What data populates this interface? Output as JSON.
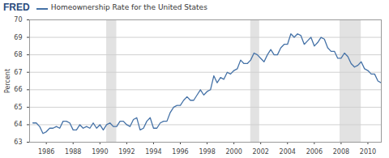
{
  "chart_data": {
    "type": "line",
    "logo": "FRED",
    "ylabel": "Percent",
    "legend": "top",
    "grid": true,
    "x": [
      1985,
      1985.25,
      1985.5,
      1985.75,
      1986,
      1986.25,
      1986.5,
      1986.75,
      1987,
      1987.25,
      1987.5,
      1987.75,
      1988,
      1988.25,
      1988.5,
      1988.75,
      1989,
      1989.25,
      1989.5,
      1989.75,
      1990,
      1990.25,
      1990.5,
      1990.75,
      1991,
      1991.25,
      1991.5,
      1991.75,
      1992,
      1992.25,
      1992.5,
      1992.75,
      1993,
      1993.25,
      1993.5,
      1993.75,
      1994,
      1994.25,
      1994.5,
      1994.75,
      1995,
      1995.25,
      1995.5,
      1995.75,
      1996,
      1996.25,
      1996.5,
      1996.75,
      1997,
      1997.25,
      1997.5,
      1997.75,
      1998,
      1998.25,
      1998.5,
      1998.75,
      1999,
      1999.25,
      1999.5,
      1999.75,
      2000,
      2000.25,
      2000.5,
      2000.75,
      2001,
      2001.25,
      2001.5,
      2001.75,
      2002,
      2002.25,
      2002.5,
      2002.75,
      2003,
      2003.25,
      2003.5,
      2003.75,
      2004,
      2004.25,
      2004.5,
      2004.75,
      2005,
      2005.25,
      2005.5,
      2005.75,
      2006,
      2006.25,
      2006.5,
      2006.75,
      2007,
      2007.25,
      2007.5,
      2007.75,
      2008,
      2008.25,
      2008.5,
      2008.75,
      2009,
      2009.25,
      2009.5,
      2009.75,
      2010,
      2010.25,
      2010.5,
      2010.75,
      2011
    ],
    "series": [
      {
        "name": "Homeownership Rate for the United States",
        "color": "#4572a7",
        "values": [
          64.1,
          64.1,
          63.9,
          63.5,
          63.6,
          63.8,
          63.8,
          63.9,
          63.8,
          64.2,
          64.2,
          64.1,
          63.7,
          63.7,
          64.0,
          63.8,
          63.9,
          63.8,
          64.1,
          63.8,
          64.0,
          63.7,
          64.0,
          64.1,
          63.9,
          63.9,
          64.2,
          64.2,
          64.0,
          63.9,
          64.3,
          64.4,
          63.7,
          63.8,
          64.2,
          64.4,
          63.8,
          63.8,
          64.1,
          64.2,
          64.2,
          64.7,
          65.0,
          65.1,
          65.1,
          65.4,
          65.6,
          65.4,
          65.4,
          65.7,
          66.0,
          65.7,
          65.9,
          66.0,
          66.8,
          66.4,
          66.7,
          66.6,
          67.0,
          66.9,
          67.1,
          67.2,
          67.7,
          67.5,
          67.5,
          67.7,
          68.1,
          68.0,
          67.8,
          67.6,
          68.0,
          68.3,
          68.0,
          68.0,
          68.4,
          68.6,
          68.6,
          69.2,
          69.0,
          69.2,
          69.1,
          68.6,
          68.8,
          69.0,
          68.5,
          68.7,
          69.0,
          68.9,
          68.4,
          68.2,
          68.2,
          67.8,
          67.8,
          68.1,
          67.9,
          67.5,
          67.3,
          67.4,
          67.6,
          67.2,
          67.1,
          66.9,
          66.9,
          66.5,
          66.4
        ]
      }
    ],
    "recessions": [
      [
        1990.5,
        1991.25
      ],
      [
        2001.25,
        2001.917
      ],
      [
        2007.917,
        2009.5
      ]
    ],
    "xlim": [
      1984.75,
      2011
    ],
    "xticks": [
      1986,
      1988,
      1990,
      1992,
      1994,
      1996,
      1998,
      2000,
      2002,
      2004,
      2006,
      2008,
      2010
    ],
    "ylim": [
      63,
      70
    ],
    "yticks": [
      63,
      64,
      65,
      66,
      67,
      68,
      69,
      70
    ]
  }
}
